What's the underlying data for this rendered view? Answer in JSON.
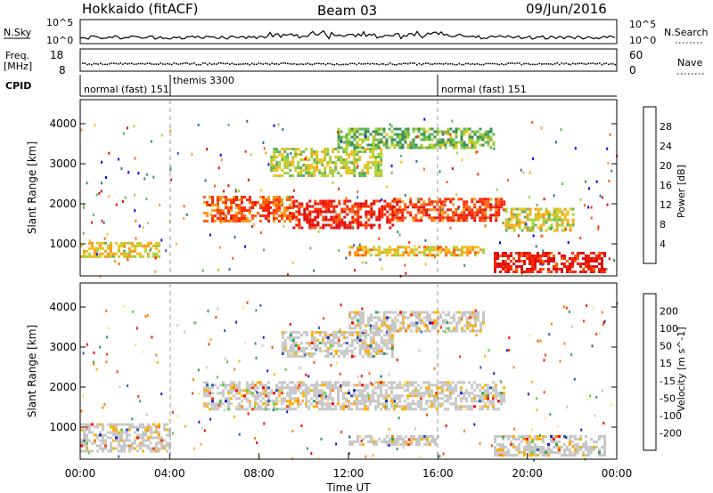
{
  "header": {
    "station": "Hokkaido (fitACF)",
    "beam": "Beam 03",
    "date": "09/Jun/2016"
  },
  "small_panels": {
    "nsky_label": "N.Sky",
    "nsky_ticks": [
      "10^5",
      "10^0"
    ],
    "nsearch_label": "N.Search",
    "nsearch_ticks": [
      "10^5",
      "10^0"
    ],
    "freq_label_line1": "Freq.",
    "freq_label_line2": "[MHz]",
    "freq_ticks": [
      "18",
      "8"
    ],
    "nave_label": "Nave",
    "nave_ticks": [
      "60",
      "0"
    ],
    "cpid_label": "CPID",
    "cpid_segments": [
      {
        "label": "normal (fast) 151",
        "start_hour": 0
      },
      {
        "label": "themis 3300",
        "start_hour": 4
      },
      {
        "label": "normal (fast) 151",
        "start_hour": 16
      }
    ]
  },
  "chart_data": [
    {
      "type": "heatmap",
      "name": "power",
      "xlabel": "",
      "ylabel": "Slant Range [km]",
      "xlim": [
        0,
        24
      ],
      "ylim": [
        200,
        4600
      ],
      "yticks": [
        "1000",
        "2000",
        "3000",
        "4000"
      ],
      "colorbar": {
        "label": "Power [dB]",
        "ticks": [
          "4",
          "8",
          "12",
          "16",
          "20",
          "24",
          "28"
        ],
        "colors": [
          "#0000ff",
          "#2a6fb0",
          "#3c8f5a",
          "#63b65a",
          "#a6d23a",
          "#f0c020",
          "#ff9a1a",
          "#ff6010",
          "#ff2a00",
          "#e01010"
        ]
      },
      "echo_bands": [
        {
          "x0": 0.0,
          "x1": 3.5,
          "y0": 650,
          "y1": 1050,
          "level": 0.55
        },
        {
          "x0": 5.5,
          "x1": 9.5,
          "y0": 1550,
          "y1": 2200,
          "level": 0.8
        },
        {
          "x0": 9.5,
          "x1": 14.0,
          "y0": 1400,
          "y1": 2100,
          "level": 0.95
        },
        {
          "x0": 14.0,
          "x1": 19.0,
          "y0": 1550,
          "y1": 2150,
          "level": 0.85
        },
        {
          "x0": 8.5,
          "x1": 13.5,
          "y0": 2700,
          "y1": 3400,
          "level": 0.45
        },
        {
          "x0": 11.5,
          "x1": 18.5,
          "y0": 3400,
          "y1": 3900,
          "level": 0.35
        },
        {
          "x0": 18.5,
          "x1": 23.5,
          "y0": 300,
          "y1": 800,
          "level": 0.95
        },
        {
          "x0": 12.0,
          "x1": 18.0,
          "y0": 700,
          "y1": 950,
          "level": 0.6
        },
        {
          "x0": 19.0,
          "x1": 22.0,
          "y0": 1300,
          "y1": 1900,
          "level": 0.5
        }
      ]
    },
    {
      "type": "heatmap",
      "name": "velocity",
      "xlabel": "Time UT",
      "ylabel": "Slant Range [km]",
      "xlim": [
        0,
        24
      ],
      "ylim": [
        200,
        4600
      ],
      "xticks": [
        "00:00",
        "04:00",
        "08:00",
        "12:00",
        "16:00",
        "20:00",
        "00:00"
      ],
      "yticks": [
        "1000",
        "2000",
        "3000",
        "4000"
      ],
      "colorbar": {
        "label": "Velocity [m s^-1]",
        "ticks": [
          "-200",
          "-100",
          "-50",
          "-15",
          "15",
          "50",
          "100",
          "200"
        ],
        "colors": [
          "#ff0000",
          "#ff4000",
          "#ff8000",
          "#ffb000",
          "#ffe090",
          "#c8c8c8",
          "#5ad040",
          "#2aa060",
          "#2a60b0",
          "#2020c0"
        ]
      },
      "echo_bands": [
        {
          "x0": 5.5,
          "x1": 19.0,
          "y0": 1450,
          "y1": 2150,
          "level": 0.5
        },
        {
          "x0": 9.0,
          "x1": 14.0,
          "y0": 2750,
          "y1": 3400,
          "level": 0.5
        },
        {
          "x0": 12.0,
          "x1": 18.0,
          "y0": 3400,
          "y1": 3900,
          "level": 0.5
        },
        {
          "x0": 0.0,
          "x1": 4.0,
          "y0": 400,
          "y1": 1100,
          "level": 0.4
        },
        {
          "x0": 12.0,
          "x1": 16.0,
          "y0": 550,
          "y1": 800,
          "level": 0.15
        },
        {
          "x0": 18.5,
          "x1": 23.5,
          "y0": 300,
          "y1": 800,
          "level": 0.5
        }
      ]
    }
  ]
}
